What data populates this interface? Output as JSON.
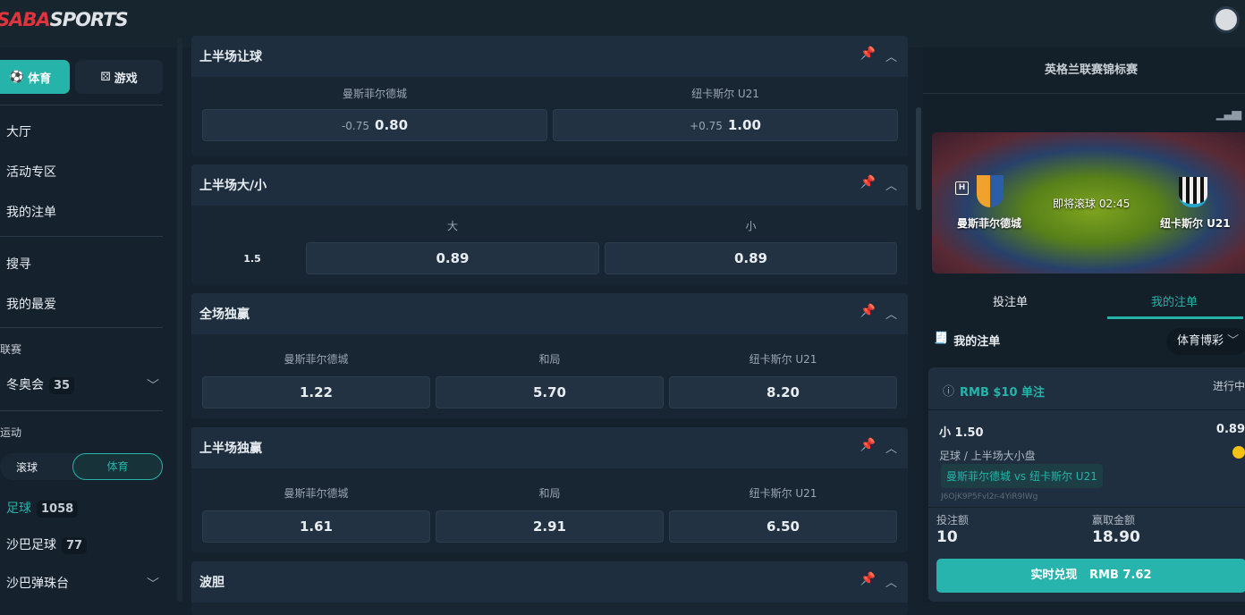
{
  "header": {
    "logo": "SABASPORTS"
  },
  "sidebar": {
    "tabs": [
      {
        "label": "体育",
        "icon": "soccer-ball-icon",
        "active": true
      },
      {
        "label": "游戏",
        "icon": "dice-icon",
        "active": false
      }
    ],
    "nav": [
      "大厅",
      "活动专区",
      "我的注单",
      "搜寻",
      "我的最爱"
    ],
    "leagues_title": "联赛",
    "leagues": [
      {
        "label": "冬奥会",
        "count": "35"
      }
    ],
    "sports_title": "运动",
    "segment": {
      "left": "滚球",
      "right": "体育"
    },
    "sports": [
      {
        "label": "足球",
        "count": "1058",
        "active": true
      },
      {
        "label": "沙巴足球",
        "count": "77"
      },
      {
        "label": "沙巴弹珠台"
      }
    ]
  },
  "markets": [
    {
      "title": "上半场让球",
      "cols": [
        "曼斯菲尔德城",
        "纽卡斯尔 U21"
      ],
      "odds": [
        {
          "hdp": "-0.75",
          "value": "0.80"
        },
        {
          "hdp": "+0.75",
          "value": "1.00"
        }
      ]
    },
    {
      "title": "上半场大/小",
      "cols": [
        "大",
        "小"
      ],
      "line": "1.5",
      "odds": [
        {
          "value": "0.89"
        },
        {
          "value": "0.89"
        }
      ]
    },
    {
      "title": "全场独赢",
      "cols": [
        "曼斯菲尔德城",
        "和局",
        "纽卡斯尔 U21"
      ],
      "odds": [
        {
          "value": "1.22"
        },
        {
          "value": "5.70"
        },
        {
          "value": "8.20"
        }
      ]
    },
    {
      "title": "上半场独赢",
      "cols": [
        "曼斯菲尔德城",
        "和局",
        "纽卡斯尔 U21"
      ],
      "odds": [
        {
          "value": "1.61"
        },
        {
          "value": "2.91"
        },
        {
          "value": "6.50"
        }
      ]
    },
    {
      "title": "波胆"
    }
  ],
  "match": {
    "league": "英格兰联赛锦标赛",
    "home_tag": "H",
    "home": "曼斯菲尔德城",
    "away": "纽卡斯尔 U21",
    "status": "即将滚球 02:45"
  },
  "betslip": {
    "tabs": [
      "投注单",
      "我的注单"
    ],
    "title": "我的注单",
    "filter": "体育博彩",
    "bet": {
      "header": "RMB $10 单注",
      "status": "进行中",
      "selection": "小 1.50",
      "odds": "0.89",
      "market": "足球 / 上半场大小盘",
      "event": "曼斯菲尔德城 vs 纽卡斯尔 U21",
      "ref": "J6OjK9P5Fvl2r-4YiR9lWg",
      "stake_label": "投注额",
      "stake": "10",
      "win_label": "赢取金额",
      "win": "18.90",
      "cashout": "实时兑现   RMB 7.62"
    }
  },
  "colors": {
    "accent": "#26b3a9",
    "background": "#15212d"
  }
}
